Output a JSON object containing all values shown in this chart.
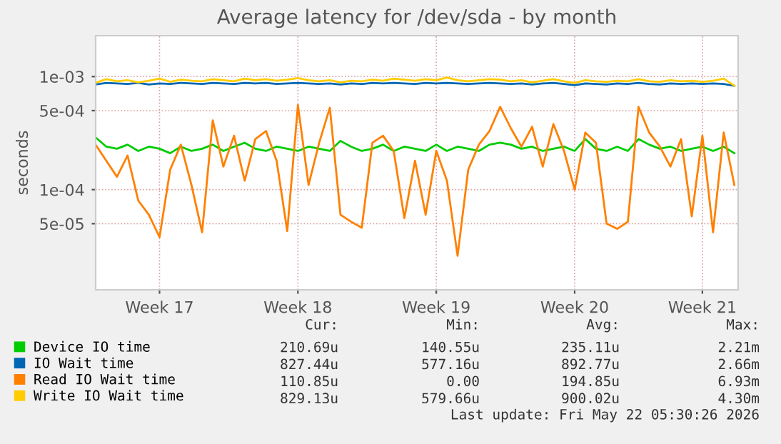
{
  "chart_data": {
    "type": "line",
    "title": "Average latency for /dev/sda - by month",
    "ylabel": "seconds",
    "log": "y",
    "grid": true,
    "legend": "bottom left",
    "marker": "none",
    "line_style": "solid",
    "categories": [
      null,
      null,
      null,
      null,
      null,
      null,
      "Week 17",
      null,
      null,
      null,
      null,
      null,
      null,
      null,
      null,
      null,
      null,
      null,
      null,
      "Week 18",
      null,
      null,
      null,
      null,
      null,
      null,
      null,
      null,
      null,
      null,
      null,
      null,
      "Week 19",
      null,
      null,
      null,
      null,
      null,
      null,
      null,
      null,
      null,
      null,
      null,
      null,
      "Week 20",
      null,
      null,
      null,
      null,
      null,
      null,
      null,
      null,
      null,
      null,
      null,
      "Week 21",
      null,
      null,
      null
    ],
    "ylim": [
      1.3e-05,
      0.0023
    ],
    "yticks": [
      {
        "value": 5e-05,
        "label": "5e-05"
      },
      {
        "value": 0.0001,
        "label": "1e-04"
      },
      {
        "value": 0.0005,
        "label": "5e-04"
      },
      {
        "value": 0.001,
        "label": "1e-03"
      }
    ],
    "series": [
      {
        "name": "Device IO time",
        "color": "#00cc00",
        "values": [
          0.00029,
          0.00024,
          0.00023,
          0.00025,
          0.00022,
          0.00024,
          0.00023,
          0.00021,
          0.00024,
          0.00022,
          0.00023,
          0.00025,
          0.00022,
          0.00024,
          0.00026,
          0.00023,
          0.00022,
          0.00024,
          0.00023,
          0.00022,
          0.00024,
          0.00023,
          0.00022,
          0.00027,
          0.00024,
          0.00022,
          0.00023,
          0.00025,
          0.00022,
          0.00024,
          0.00023,
          0.00022,
          0.00025,
          0.00022,
          0.00024,
          0.00023,
          0.00022,
          0.00025,
          0.00026,
          0.00025,
          0.00023,
          0.00024,
          0.00022,
          0.00023,
          0.00024,
          0.00022,
          0.00028,
          0.00023,
          0.00022,
          0.00024,
          0.00022,
          0.00028,
          0.00025,
          0.00023,
          0.00024,
          0.00022,
          0.00023,
          0.00024,
          0.00022,
          0.00024,
          0.00021
        ]
      },
      {
        "name": "IO Wait time",
        "color": "#0066b3",
        "values": [
          0.00085,
          0.00088,
          0.00087,
          0.00086,
          0.00088,
          0.00085,
          0.00087,
          0.00086,
          0.00088,
          0.00087,
          0.00086,
          0.00088,
          0.00087,
          0.00086,
          0.00088,
          0.00087,
          0.00088,
          0.00086,
          0.00087,
          0.00088,
          0.00087,
          0.00086,
          0.00087,
          0.00085,
          0.00087,
          0.00086,
          0.00088,
          0.00087,
          0.00088,
          0.00087,
          0.00086,
          0.00088,
          0.00087,
          0.00088,
          0.00087,
          0.00086,
          0.00087,
          0.00088,
          0.00087,
          0.00086,
          0.00087,
          0.00085,
          0.00087,
          0.00088,
          0.00086,
          0.00084,
          0.00087,
          0.00086,
          0.00085,
          0.00087,
          0.00086,
          0.00088,
          0.00086,
          0.00085,
          0.00087,
          0.00086,
          0.00087,
          0.00086,
          0.00087,
          0.00086,
          0.00083
        ]
      },
      {
        "name": "Read IO Wait time",
        "color": "#ff8000",
        "values": [
          0.00025,
          0.00018,
          0.00013,
          0.0002,
          8e-05,
          6e-05,
          3.8e-05,
          0.00015,
          0.00025,
          0.00011,
          4.2e-05,
          0.00041,
          0.00016,
          0.0003,
          0.00012,
          0.00028,
          0.00033,
          0.00018,
          4.3e-05,
          0.00056,
          0.00011,
          0.00026,
          0.00053,
          6e-05,
          5.2e-05,
          4.6e-05,
          0.00026,
          0.0003,
          0.00022,
          5.6e-05,
          0.00018,
          6e-05,
          0.00022,
          0.00012,
          2.6e-05,
          0.00015,
          0.00025,
          0.00033,
          0.00054,
          0.00035,
          0.00024,
          0.00036,
          0.00016,
          0.00038,
          0.00022,
          0.0001,
          0.00032,
          0.00026,
          5e-05,
          4.5e-05,
          5.2e-05,
          0.00054,
          0.00032,
          0.00024,
          0.00016,
          0.00028,
          5.8e-05,
          0.0003,
          4.2e-05,
          0.00032,
          0.00011
        ]
      },
      {
        "name": "Write IO Wait time",
        "color": "#ffcc00",
        "values": [
          0.00088,
          0.00095,
          0.00091,
          0.00093,
          0.00089,
          0.00092,
          0.00096,
          0.0009,
          0.00094,
          0.00092,
          0.00091,
          0.00095,
          0.00093,
          0.00091,
          0.00096,
          0.00093,
          0.00095,
          0.00092,
          0.00094,
          0.00097,
          0.00093,
          0.00091,
          0.00093,
          0.00089,
          0.00092,
          0.00091,
          0.00094,
          0.00092,
          0.00096,
          0.00094,
          0.00092,
          0.00095,
          0.00093,
          0.00098,
          0.00093,
          0.00091,
          0.00093,
          0.00095,
          0.00094,
          0.00091,
          0.00093,
          0.00089,
          0.00092,
          0.00095,
          0.00091,
          0.00088,
          0.00093,
          0.00091,
          0.0009,
          0.00092,
          0.00091,
          0.00095,
          0.00091,
          0.0009,
          0.00093,
          0.00091,
          0.00092,
          0.0009,
          0.00092,
          0.00096,
          0.00083
        ]
      }
    ],
    "annotations": [
      "Cur:",
      "Min:",
      "Avg:",
      "Max:",
      "210.69u",
      "140.55u",
      "235.11u",
      "2.21m",
      "827.44u",
      "577.16u",
      "892.77u",
      "2.66m",
      "110.85u",
      "0.00",
      "194.85u",
      "6.93m",
      "829.13u",
      "579.66u",
      "900.02u",
      "4.30m",
      "Last update: Fri May 22 05:30:26 2026"
    ]
  }
}
